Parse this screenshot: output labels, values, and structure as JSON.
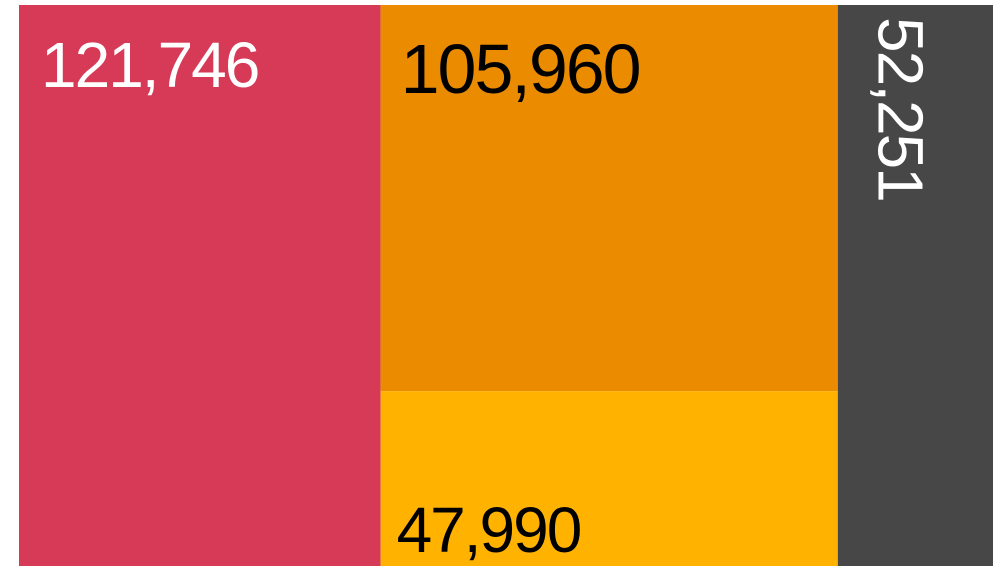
{
  "chart_data": {
    "type": "treemap",
    "values": [
      121746,
      105960,
      47990,
      52251
    ],
    "value_labels": [
      "121,746",
      "105,960",
      "47,990",
      "52,251"
    ],
    "colors": [
      "#d63a57",
      "#ea8b00",
      "#ffb300",
      "#474747"
    ],
    "label_colors": [
      "#ffffff",
      "#000000",
      "#000000",
      "#ffffff"
    ]
  }
}
